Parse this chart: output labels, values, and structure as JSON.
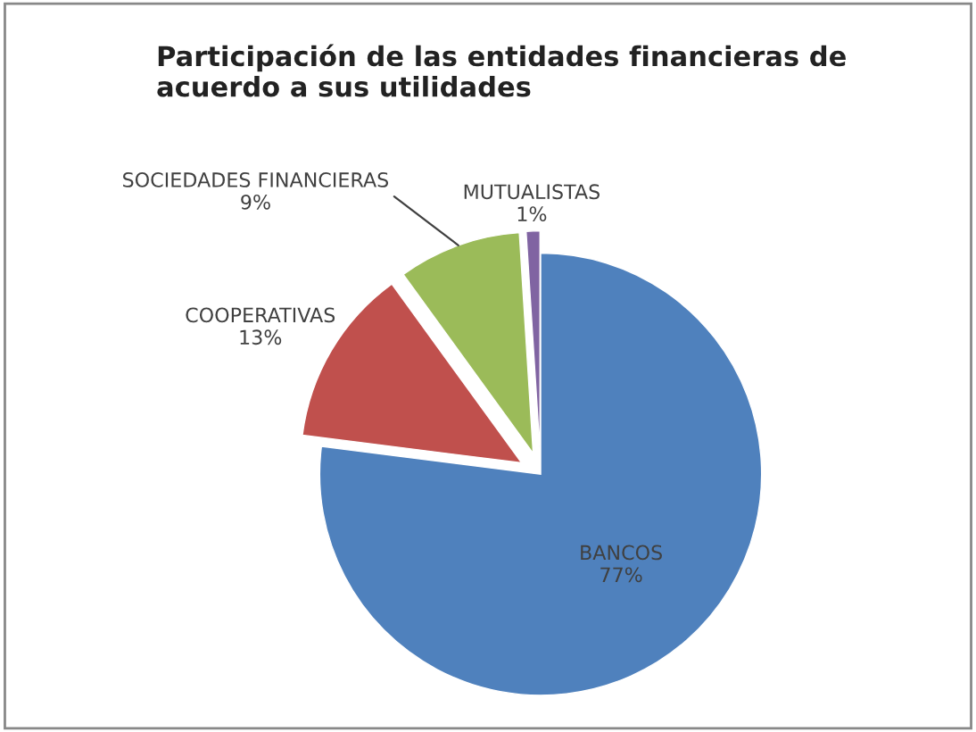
{
  "chart_data": {
    "type": "pie",
    "title": "Participación de las entidades financieras de acuerdo a sus utilidades",
    "categories": [
      "BANCOS",
      "COOPERATIVAS",
      "SOCIEDADES FINANCIERAS",
      "MUTUALISTAS"
    ],
    "values": [
      77,
      13,
      9,
      1
    ],
    "colors": [
      "#4f81bd",
      "#c0504d",
      "#9bbb59",
      "#8064a2"
    ],
    "value_labels": [
      "77%",
      "13%",
      "9%",
      "1%"
    ],
    "legend": false
  }
}
